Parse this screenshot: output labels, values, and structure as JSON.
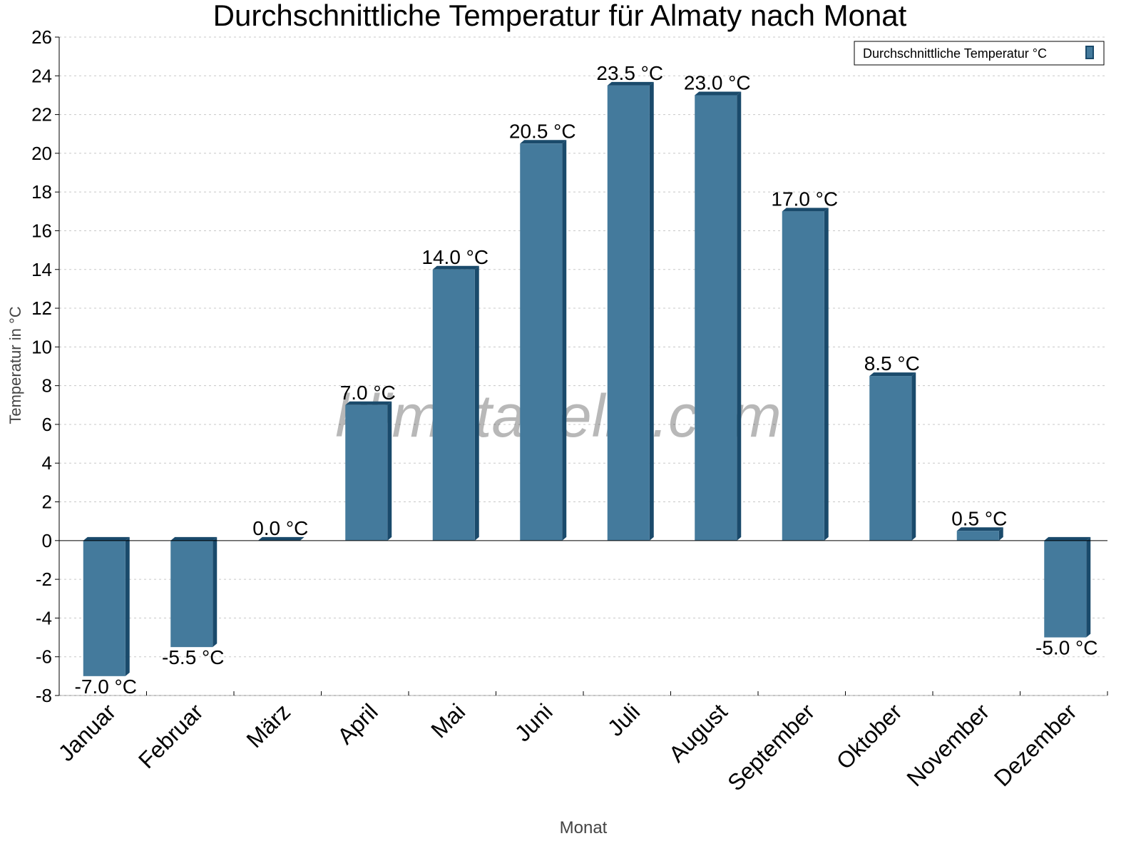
{
  "chart_data": {
    "type": "bar",
    "title": "Durchschnittliche Temperatur für Almaty nach Monat",
    "xlabel": "Monat",
    "ylabel": "Temperatur in °C",
    "categories": [
      "Januar",
      "Februar",
      "März",
      "April",
      "Mai",
      "Juni",
      "Juli",
      "August",
      "September",
      "Oktober",
      "November",
      "Dezember"
    ],
    "series": [
      {
        "name": "Durchschnittliche Temperatur °C",
        "values": [
          -7.0,
          -5.5,
          0.0,
          7.0,
          14.0,
          20.5,
          23.5,
          23.0,
          17.0,
          8.5,
          0.5,
          -5.0
        ]
      }
    ],
    "data_labels": [
      "-7.0 °C",
      "-5.5 °C",
      "0.0 °C",
      "7.0 °C",
      "14.0 °C",
      "20.5 °C",
      "23.5 °C",
      "23.0 °C",
      "17.0 °C",
      "8.5 °C",
      "0.5 °C",
      "-5.0 °C"
    ],
    "ylim": [
      -8,
      26
    ],
    "yticks": [
      -8,
      -6,
      -4,
      -2,
      0,
      2,
      4,
      6,
      8,
      10,
      12,
      14,
      16,
      18,
      20,
      22,
      24,
      26
    ],
    "grid": "horizontal dotted",
    "legend": "top-right",
    "watermark": "klimatabelle.com",
    "colors": {
      "bar_front": "#447a9c",
      "bar_side": "#1a4a6b",
      "grid": "#c8c8c8"
    }
  }
}
